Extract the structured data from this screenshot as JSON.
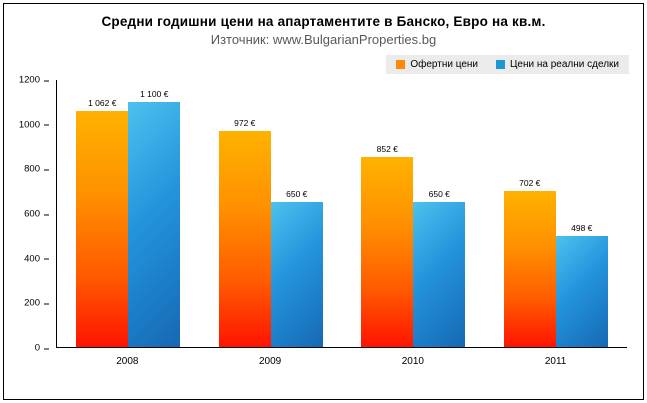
{
  "chart_data": {
    "type": "bar",
    "title": "Средни годишни цени на апартаментите в Банско, Евро на кв.м.",
    "subtitle": "Източник: www.BulgarianProperties.bg",
    "categories": [
      "2008",
      "2009",
      "2010",
      "2011"
    ],
    "series": [
      {
        "name": "Офертни цени",
        "color": "#FF8A00",
        "values": [
          1062,
          972,
          852,
          702
        ],
        "labels": [
          "1 062 €",
          "972 €",
          "852 €",
          "702 €"
        ]
      },
      {
        "name": "Цени на реални сделки",
        "color": "#1E96D2",
        "values": [
          1100,
          650,
          650,
          498
        ],
        "labels": [
          "1 100 €",
          "650 €",
          "650 €",
          "498 €"
        ]
      }
    ],
    "ylim": [
      0,
      1200
    ],
    "ytick_step": 200,
    "grid": false,
    "legend_position": "top-right"
  }
}
